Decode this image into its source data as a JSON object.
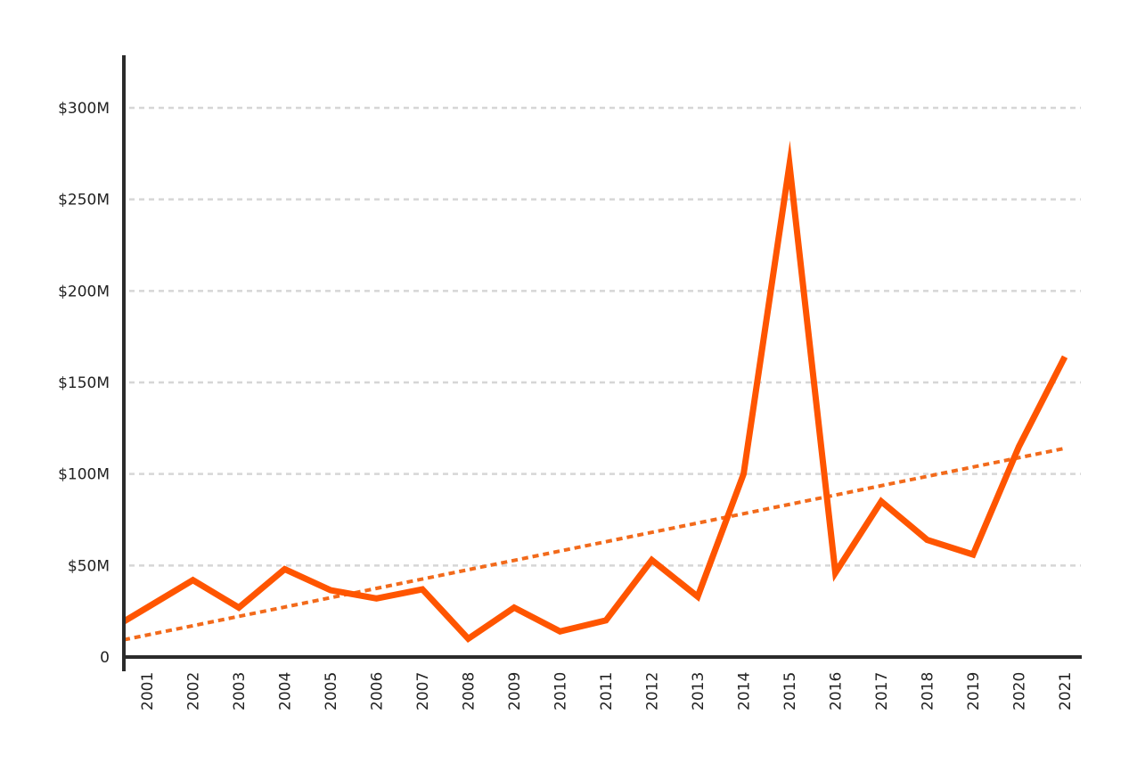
{
  "chart_data": {
    "type": "line",
    "title": "",
    "xlabel": "",
    "ylabel": "",
    "categories": [
      "2001",
      "2002",
      "2003",
      "2004",
      "2005",
      "2006",
      "2007",
      "2008",
      "2009",
      "2010",
      "2011",
      "2012",
      "2013",
      "2014",
      "2015",
      "2016",
      "2017",
      "2018",
      "2019",
      "2020",
      "2021"
    ],
    "series": [
      {
        "values": [
          27,
          42,
          27,
          48,
          36.5,
          32,
          37,
          10,
          27,
          14,
          20,
          53,
          33,
          100,
          269,
          46,
          85,
          64,
          56,
          115,
          164
        ],
        "color": "#ff5500"
      }
    ],
    "trendline": {
      "style": "dotted",
      "color": "#f26a1b",
      "start": {
        "x": "2001",
        "y": 12
      },
      "end": {
        "x": "2021",
        "y": 114
      }
    },
    "ylim": [
      0,
      300
    ],
    "yticks": [
      0,
      50,
      100,
      150,
      200,
      250,
      300
    ],
    "ytick_labels": [
      "0",
      "$50M",
      "$100M",
      "$150M",
      "$200M",
      "$250M",
      "$300M"
    ],
    "grid": "horizontal dashed",
    "legend": "none"
  }
}
